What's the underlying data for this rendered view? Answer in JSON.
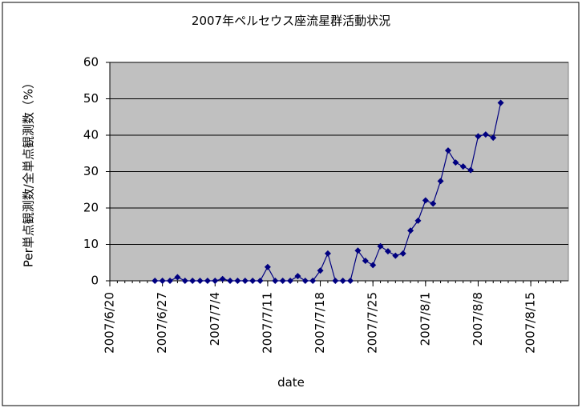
{
  "chart_data": {
    "type": "line",
    "title": "2007年ペルセウス座流星群活動状況",
    "x_label": "date",
    "y_label": "Per単点観測数/全単点観測数（%）",
    "x": [
      "2007/6/26",
      "2007/6/27",
      "2007/6/28",
      "2007/6/29",
      "2007/6/30",
      "2007/7/1",
      "2007/7/2",
      "2007/7/3",
      "2007/7/4",
      "2007/7/5",
      "2007/7/6",
      "2007/7/7",
      "2007/7/8",
      "2007/7/9",
      "2007/7/10",
      "2007/7/11",
      "2007/7/12",
      "2007/7/13",
      "2007/7/14",
      "2007/7/15",
      "2007/7/16",
      "2007/7/17",
      "2007/7/18",
      "2007/7/19",
      "2007/7/20",
      "2007/7/21",
      "2007/7/22",
      "2007/7/23",
      "2007/7/24",
      "2007/7/25",
      "2007/7/26",
      "2007/7/27",
      "2007/7/28",
      "2007/7/29",
      "2007/7/30",
      "2007/7/31",
      "2007/8/1",
      "2007/8/2",
      "2007/8/3",
      "2007/8/4",
      "2007/8/5",
      "2007/8/6",
      "2007/8/7",
      "2007/8/8",
      "2007/8/9",
      "2007/8/10",
      "2007/8/11"
    ],
    "series": [
      {
        "color": "#000080",
        "values": [
          0,
          0,
          0,
          1,
          0,
          0,
          0,
          0,
          0,
          0.5,
          0,
          0,
          0,
          0,
          0,
          3.8,
          0,
          0,
          0,
          1.3,
          0,
          0,
          2.8,
          7.5,
          0,
          0,
          0,
          8.3,
          5.5,
          4.3,
          9.5,
          8.1,
          6.9,
          7.5,
          13.8,
          16.5,
          22.1,
          21.2,
          27.4,
          35.8,
          32.5,
          31.4,
          30.4,
          39.7,
          40.2,
          39.3,
          48.9
        ]
      }
    ],
    "xlim": [
      "2007/6/20",
      "2007/8/20"
    ],
    "xticks": [
      "2007/6/20",
      "2007/6/27",
      "2007/7/4",
      "2007/7/11",
      "2007/7/18",
      "2007/7/25",
      "2007/8/1",
      "2007/8/8",
      "2007/8/15"
    ],
    "ylim": [
      0,
      60
    ],
    "yticks": [
      0,
      10,
      20,
      30,
      40,
      50,
      60
    ],
    "grid": true
  }
}
